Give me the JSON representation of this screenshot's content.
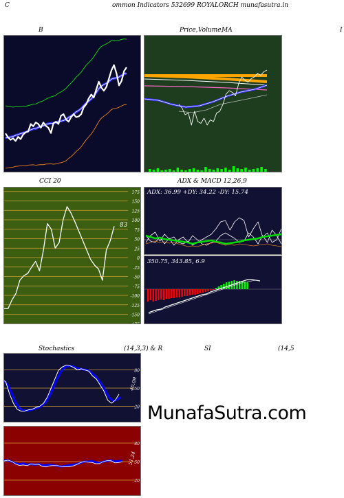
{
  "header": {
    "left_letter": "C",
    "title": "ommon  Indicators 532699 ROYALORCH munafasutra.in"
  },
  "panels": {
    "bollinger": {
      "title": "B",
      "bg": "#0a0a2a"
    },
    "price_ma": {
      "title_a": "Price,",
      "title_b": "Volume,",
      "title_c": "MA",
      "right_letter": "I",
      "bg": "#1e3d1e"
    },
    "cci": {
      "title": "CCI 20",
      "value_label": "83",
      "bg": "#3b5e10",
      "levels": [
        "175",
        "150",
        "125",
        "100",
        "75",
        "50",
        "25",
        "0",
        "-25",
        "-50",
        "-75",
        "-100",
        "-125",
        "-150",
        "-175"
      ]
    },
    "adx": {
      "title": "ADX  & MACD 12,26,9",
      "readout": "ADX: 36.99  +DY: 34.22  -DY: 15.74",
      "bg": "#111133"
    },
    "macd": {
      "readout": "350.75,  343.85,  6.9",
      "bg": "#111133"
    },
    "stoch": {
      "title_a": "Stochastics",
      "title_b": "(14,3,3) & R",
      "value_label": "40.09",
      "levels": [
        "80",
        "50",
        "20"
      ],
      "bg": "#111133"
    },
    "rsi": {
      "title_a": "SI",
      "title_b": "(14,5",
      "value_label": "51.24",
      "levels": [
        "80",
        "50",
        "20"
      ],
      "bg": "#8b0000"
    }
  },
  "watermark": "MunafaSutra.com",
  "chart_data": [
    {
      "type": "line",
      "title": "B",
      "series": [
        {
          "values": [
            185,
            175,
            168,
            172,
            165,
            176,
            170,
            182,
            188,
            190,
            210,
            204,
            214,
            210,
            200,
            214,
            205,
            200,
            186,
            212,
            216,
            210,
            232,
            236,
            222,
            216,
            228,
            236,
            228,
            230,
            236,
            254,
            262,
            278,
            288,
            280,
            302,
            322,
            306,
            298,
            308,
            330,
            352,
            366,
            344,
            312,
            324,
            350,
            360
          ]
        }
      ]
    },
    {
      "type": "line",
      "title": "Price, Volume, MA",
      "series": [
        {
          "values": [
            120,
            110,
            90,
            95,
            60,
            100,
            70,
            65,
            80,
            60,
            75,
            70,
            95,
            100,
            120,
            150,
            160,
            155,
            145,
            180,
            200,
            190,
            185,
            195,
            200,
            210,
            205,
            215,
            220
          ]
        }
      ]
    },
    {
      "type": "line",
      "title": "CCI 20",
      "series": [
        {
          "values": [
            -135,
            -135,
            -112,
            -95,
            -60,
            -48,
            -42,
            -25,
            -10,
            -35,
            20,
            90,
            75,
            25,
            40,
            100,
            135,
            118,
            95,
            70,
            45,
            20,
            -5,
            -20,
            -30,
            -60,
            20,
            45,
            83
          ]
        }
      ]
    },
    {
      "type": "line",
      "title": "ADX & MACD 12,26,9",
      "series": [
        {
          "name": "ADX",
          "values": [
            36.99
          ]
        },
        {
          "name": "+DY",
          "values": [
            34.22
          ]
        },
        {
          "name": "-DY",
          "values": [
            15.74
          ]
        }
      ]
    },
    {
      "type": "bar",
      "title": "MACD",
      "series": [
        {
          "values": [
            350.75
          ]
        },
        {
          "values": [
            343.85
          ]
        },
        {
          "values": [
            6.9
          ]
        }
      ]
    },
    {
      "type": "line",
      "title": "Stochastics (14,3,3)",
      "ylim": [
        0,
        100
      ],
      "series": [
        {
          "values": [
            65,
            60,
            40,
            25,
            15,
            12,
            12,
            14,
            15,
            18,
            20,
            25,
            35,
            50,
            65,
            80,
            85,
            88,
            87,
            84,
            80,
            82,
            80,
            78,
            70,
            65,
            55,
            45,
            30,
            25,
            30,
            40
          ]
        }
      ]
    },
    {
      "type": "line",
      "title": "RSI (14)",
      "ylim": [
        0,
        100
      ],
      "series": [
        {
          "values": [
            52,
            52,
            50,
            47,
            46,
            47,
            45,
            46,
            45,
            46,
            44,
            44,
            45,
            44,
            43,
            42,
            43,
            44,
            45,
            46,
            48,
            50,
            50,
            51,
            49,
            48,
            50,
            51,
            52,
            50,
            51,
            51.24
          ]
        }
      ]
    }
  ]
}
